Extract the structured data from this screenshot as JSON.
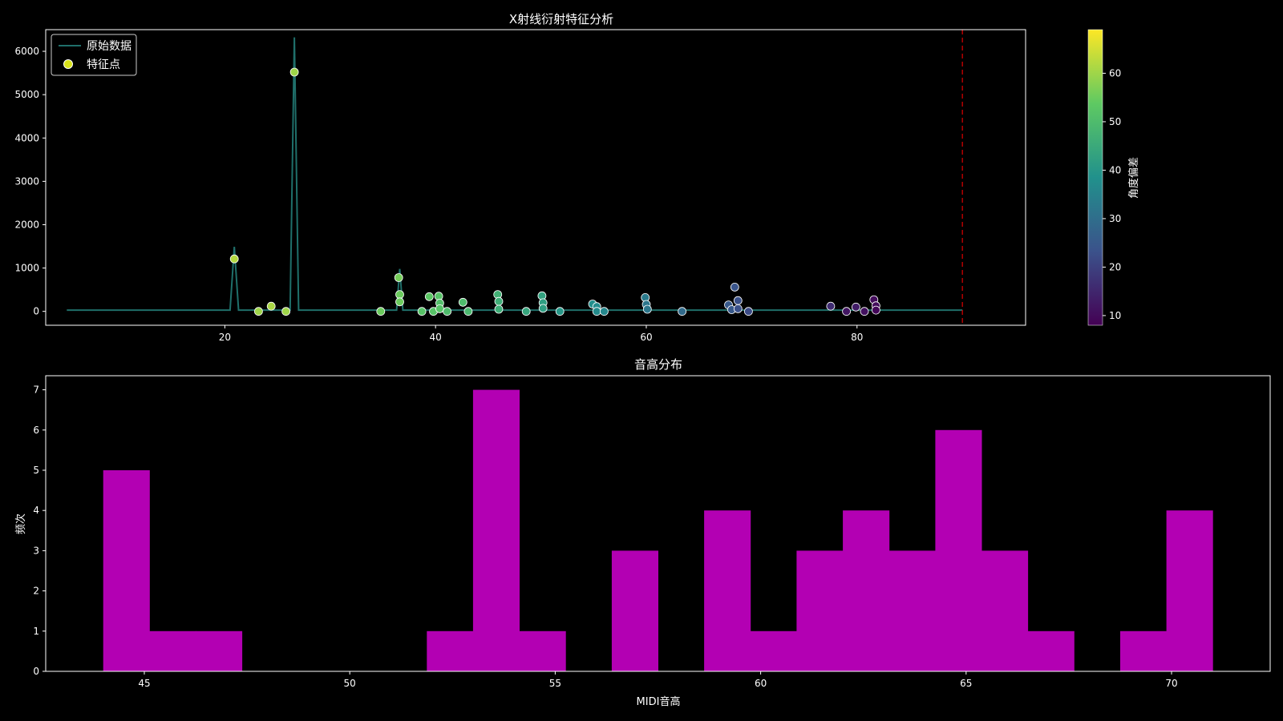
{
  "chart_data": [
    {
      "type": "line+scatter",
      "title": "X射线衍射特征分析",
      "xlabel": "",
      "ylabel": "",
      "xlim": [
        3,
        96
      ],
      "ylim": [
        -320,
        6500
      ],
      "xticks": [
        20,
        40,
        60,
        80
      ],
      "yticks": [
        0,
        1000,
        2000,
        3000,
        4000,
        5000,
        6000
      ],
      "legend": {
        "position": "top-left",
        "entries": [
          "原始数据",
          "特征点"
        ]
      },
      "colors": {
        "line": "#1f6f6a",
        "vline": "#e00000",
        "point_edge": "#ffffff"
      },
      "vline_x": 90,
      "line_series": {
        "name": "原始数据",
        "x": [
          5,
          20.5,
          20.9,
          21.3,
          26.2,
          26.6,
          27.0,
          36.3,
          36.6,
          36.9,
          90
        ],
        "y": [
          30,
          30,
          1490,
          30,
          30,
          6320,
          30,
          30,
          980,
          30,
          30
        ]
      },
      "points": {
        "name": "特征点",
        "x": [
          20.9,
          23.2,
          24.4,
          25.8,
          26.6,
          34.8,
          36.5,
          36.6,
          36.6,
          38.7,
          39.4,
          39.8,
          40.3,
          40.4,
          40.4,
          41.1,
          42.6,
          43.1,
          45.9,
          46.0,
          46.0,
          48.6,
          50.1,
          50.2,
          50.2,
          51.8,
          54.9,
          55.3,
          55.3,
          56.0,
          59.9,
          60.0,
          60.1,
          63.4,
          67.8,
          68.1,
          68.4,
          68.7,
          68.7,
          69.7,
          77.5,
          79.0,
          79.9,
          80.7,
          81.6,
          81.8,
          81.8
        ],
        "y": [
          1210,
          0,
          120,
          0,
          5520,
          0,
          780,
          390,
          220,
          0,
          340,
          0,
          350,
          190,
          60,
          0,
          210,
          0,
          390,
          230,
          50,
          0,
          360,
          200,
          70,
          0,
          170,
          110,
          0,
          0,
          320,
          160,
          50,
          0,
          150,
          40,
          560,
          250,
          60,
          0,
          120,
          0,
          100,
          0,
          270,
          130,
          30
        ],
        "angle_deviation": [
          62,
          60,
          61,
          60,
          60,
          55,
          56,
          55,
          55,
          52,
          53,
          52,
          52,
          51,
          52,
          50,
          50,
          49,
          47,
          46,
          46,
          44,
          43,
          42,
          42,
          40,
          38,
          37,
          37,
          36,
          33,
          32,
          32,
          29,
          25,
          25,
          24,
          23,
          23,
          22,
          16,
          12,
          13,
          11,
          10,
          10,
          9
        ]
      },
      "colorbar": {
        "label": "角度偏差",
        "min": 8,
        "max": 69,
        "ticks": [
          10,
          20,
          30,
          40,
          50,
          60
        ]
      }
    },
    {
      "type": "bar",
      "title": "音高分布",
      "xlabel": "MIDI音高",
      "ylabel": "频次",
      "xlim": [
        42.6,
        72.4
      ],
      "ylim": [
        0,
        7.35
      ],
      "xticks": [
        45,
        50,
        55,
        60,
        65,
        70
      ],
      "yticks": [
        0,
        1,
        2,
        3,
        4,
        5,
        6,
        7
      ],
      "bin_start": 44,
      "bin_width": 1.125,
      "values": [
        5,
        1,
        1,
        0,
        0,
        0,
        0,
        1,
        7,
        1,
        0,
        3,
        0,
        4,
        1,
        3,
        4,
        3,
        6,
        3,
        1,
        0,
        1,
        4
      ],
      "color": "#b300b3"
    }
  ]
}
